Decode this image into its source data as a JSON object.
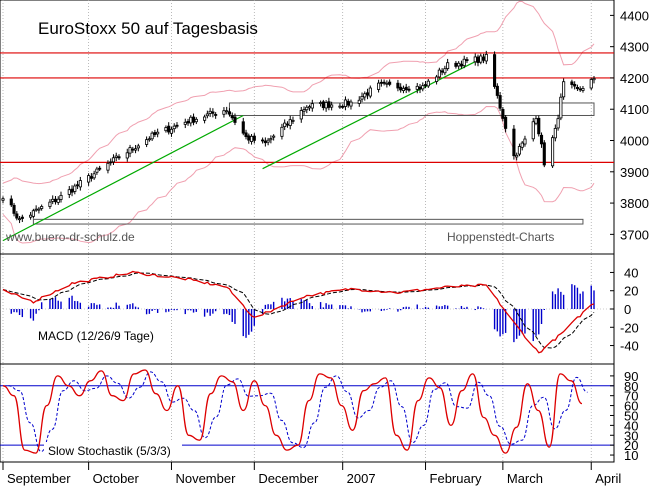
{
  "chart_data": [
    {
      "type": "candlestick",
      "title": "EuroStoxx 50 auf Tagesbasis",
      "watermark_left": "www.buero-dr-schulz.de",
      "watermark_right": "Hoppenstedt-Charts",
      "y_ticks": [
        3700,
        3800,
        3900,
        4000,
        4100,
        4200,
        4300,
        4400
      ],
      "ylim": [
        3650,
        4430
      ],
      "horizontal_levels": [
        4280,
        4200,
        3930
      ],
      "boxes": [
        {
          "y_low": 4080,
          "y_high": 4120,
          "label": ""
        },
        {
          "y_low": 3733,
          "y_high": 3748,
          "label": ""
        }
      ],
      "trendlines": [
        {
          "from": [
            "2006-09-01",
            3680
          ],
          "to": [
            "2006-11-27",
            4080
          ]
        },
        {
          "from": [
            "2006-12-04",
            3910
          ],
          "to": [
            "2007-02-23",
            4270
          ]
        }
      ],
      "close_waypoints": [
        {
          "date": "2006-09-01",
          "close": 3825
        },
        {
          "date": "2006-09-07",
          "close": 3745
        },
        {
          "date": "2006-09-22",
          "close": 3820
        },
        {
          "date": "2006-10-10",
          "close": 3930
        },
        {
          "date": "2006-10-24",
          "close": 4010
        },
        {
          "date": "2006-11-06",
          "close": 4060
        },
        {
          "date": "2006-11-21",
          "close": 4100
        },
        {
          "date": "2006-11-28",
          "close": 4010
        },
        {
          "date": "2006-12-05",
          "close": 3990
        },
        {
          "date": "2006-12-20",
          "close": 4110
        },
        {
          "date": "2007-01-05",
          "close": 4120
        },
        {
          "date": "2007-01-15",
          "close": 4175
        },
        {
          "date": "2007-01-31",
          "close": 4170
        },
        {
          "date": "2007-02-09",
          "close": 4240
        },
        {
          "date": "2007-02-23",
          "close": 4265
        },
        {
          "date": "2007-02-27",
          "close": 4140
        },
        {
          "date": "2007-03-05",
          "close": 3950
        },
        {
          "date": "2007-03-09",
          "close": 4000
        },
        {
          "date": "2007-03-13",
          "close": 4080
        },
        {
          "date": "2007-03-16",
          "close": 3930
        },
        {
          "date": "2007-03-20",
          "close": 4030
        },
        {
          "date": "2007-03-23",
          "close": 4180
        },
        {
          "date": "2007-03-28",
          "close": 4160
        },
        {
          "date": "2007-04-02",
          "close": 4190
        }
      ]
    },
    {
      "type": "line",
      "label": "MACD (12/26/9 Tage)",
      "y_ticks": [
        -40,
        -20,
        0,
        20,
        40
      ],
      "ylim": [
        -58,
        58
      ],
      "macd_waypoints": [
        {
          "date": "2006-09-01",
          "value": 20
        },
        {
          "date": "2006-09-12",
          "value": 8
        },
        {
          "date": "2006-09-26",
          "value": 28
        },
        {
          "date": "2006-10-18",
          "value": 40
        },
        {
          "date": "2006-11-06",
          "value": 33
        },
        {
          "date": "2006-11-21",
          "value": 24
        },
        {
          "date": "2006-12-01",
          "value": -10
        },
        {
          "date": "2006-12-19",
          "value": 14
        },
        {
          "date": "2007-01-05",
          "value": 22
        },
        {
          "date": "2007-01-22",
          "value": 18
        },
        {
          "date": "2007-02-09",
          "value": 24
        },
        {
          "date": "2007-02-23",
          "value": 26
        },
        {
          "date": "2007-03-05",
          "value": -15
        },
        {
          "date": "2007-03-14",
          "value": -48
        },
        {
          "date": "2007-03-23",
          "value": -25
        },
        {
          "date": "2007-04-02",
          "value": 5
        }
      ],
      "signal_lag_days": 5,
      "series": [
        {
          "name": "MACD",
          "color": "#dd0000"
        },
        {
          "name": "Signal",
          "color": "#000000",
          "style": "dashed"
        },
        {
          "name": "Histogram",
          "color": "#0000cc"
        }
      ]
    },
    {
      "type": "line",
      "label": "Slow Stochastik (5/3/3)",
      "y_ticks": [
        10,
        20,
        30,
        40,
        50,
        60,
        70,
        80,
        90
      ],
      "ylim": [
        5,
        100
      ],
      "horizontal_levels": [
        80,
        20
      ],
      "k_values": [
        80,
        70,
        15,
        12,
        60,
        90,
        80,
        70,
        85,
        95,
        70,
        65,
        92,
        96,
        72,
        55,
        80,
        30,
        25,
        72,
        90,
        84,
        55,
        85,
        60,
        30,
        15,
        20,
        65,
        92,
        88,
        60,
        35,
        75,
        82,
        88,
        30,
        15,
        65,
        88,
        78,
        40,
        75,
        92,
        48,
        30,
        12,
        38,
        82,
        55,
        18,
        92,
        85,
        62
      ],
      "series": [
        {
          "name": "%K",
          "color": "#dd0000"
        },
        {
          "name": "%D",
          "color": "#0000cc",
          "style": "dashed"
        }
      ]
    }
  ],
  "x_axis": {
    "start": "2006-09-01",
    "end": "2007-04-03",
    "month_labels": [
      {
        "label": "September",
        "date": "2006-09-01"
      },
      {
        "label": "October",
        "date": "2006-10-02"
      },
      {
        "label": "November",
        "date": "2006-11-01"
      },
      {
        "label": "December",
        "date": "2006-12-01"
      },
      {
        "label": "2007",
        "date": "2007-01-02"
      },
      {
        "label": "February",
        "date": "2007-02-01"
      },
      {
        "label": "March",
        "date": "2007-03-01"
      },
      {
        "label": "April",
        "date": "2007-04-02"
      }
    ]
  }
}
